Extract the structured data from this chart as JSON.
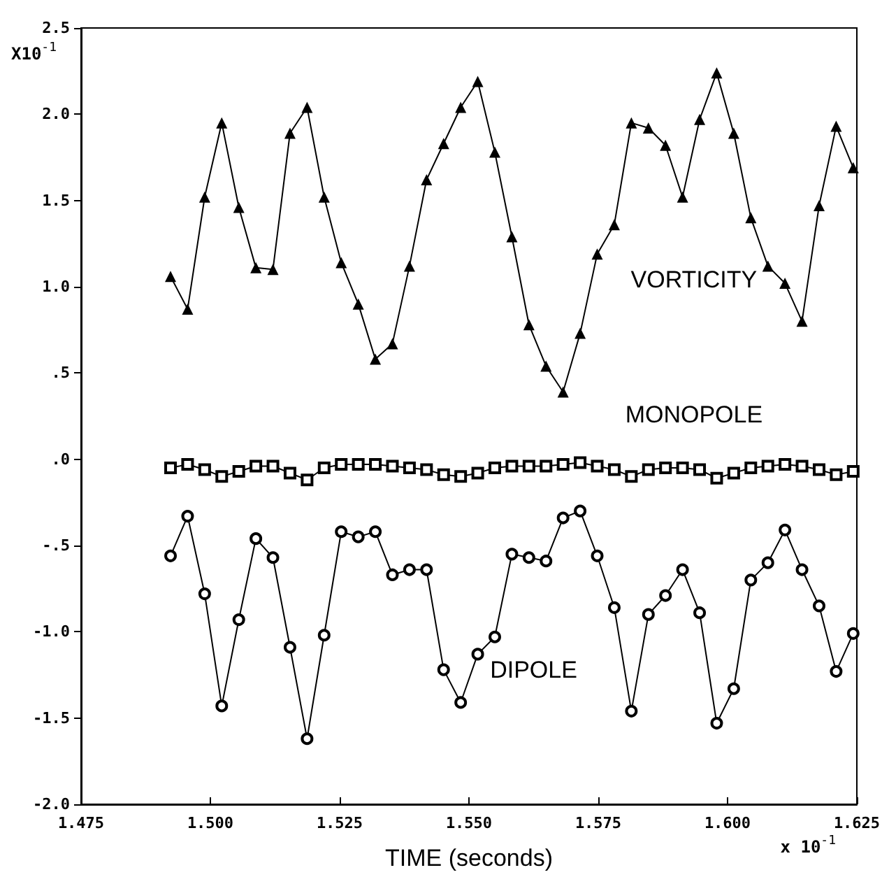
{
  "chart_data": {
    "type": "line",
    "xlabel": "TIME (seconds)",
    "annotations": [
      "X10$^{-1}$",
      "x 10$^{-1}$"
    ],
    "x": [
      1.4923,
      1.4956,
      1.4989,
      1.5022,
      1.5055,
      1.5088,
      1.5121,
      1.5154,
      1.5187,
      1.522,
      1.5253,
      1.5286,
      1.5319,
      1.5352,
      1.5385,
      1.5418,
      1.5451,
      1.5484,
      1.5517,
      1.555,
      1.5583,
      1.5616,
      1.5649,
      1.5682,
      1.5715,
      1.5748,
      1.5781,
      1.5814,
      1.5847,
      1.588,
      1.5913,
      1.5946,
      1.5979,
      1.6012,
      1.6045,
      1.6078,
      1.6111,
      1.6144,
      1.6177,
      1.621,
      1.6243
    ],
    "series": [
      {
        "name": "VORTICITY",
        "color": "#000000",
        "marker": "triangle",
        "values": [
          1.06,
          0.87,
          1.52,
          1.95,
          1.46,
          1.11,
          1.1,
          1.89,
          2.04,
          1.52,
          1.14,
          0.9,
          0.58,
          0.67,
          1.12,
          1.62,
          1.83,
          2.04,
          2.19,
          1.78,
          1.29,
          0.78,
          0.54,
          0.39,
          0.73,
          1.19,
          1.36,
          1.95,
          1.92,
          1.82,
          1.52,
          1.97,
          2.24,
          1.89,
          1.4,
          1.12,
          1.02,
          0.8,
          1.47,
          1.93,
          1.69
        ]
      },
      {
        "name": "MONOPOLE",
        "color": "#000000",
        "marker": "square",
        "values": [
          -0.05,
          -0.03,
          -0.06,
          -0.1,
          -0.07,
          -0.04,
          -0.04,
          -0.08,
          -0.12,
          -0.05,
          -0.03,
          -0.03,
          -0.03,
          -0.04,
          -0.05,
          -0.06,
          -0.09,
          -0.1,
          -0.08,
          -0.05,
          -0.04,
          -0.04,
          -0.04,
          -0.03,
          -0.02,
          -0.04,
          -0.06,
          -0.1,
          -0.06,
          -0.05,
          -0.05,
          -0.06,
          -0.11,
          -0.08,
          -0.05,
          -0.04,
          -0.03,
          -0.04,
          -0.06,
          -0.09,
          -0.07
        ]
      },
      {
        "name": "DIPOLE",
        "color": "#000000",
        "marker": "circle",
        "values": [
          -0.56,
          -0.33,
          -0.78,
          -1.43,
          -0.93,
          -0.46,
          -0.57,
          -1.09,
          -1.62,
          -1.02,
          -0.42,
          -0.45,
          -0.42,
          -0.67,
          -0.64,
          -0.64,
          -1.22,
          -1.41,
          -1.13,
          -1.03,
          -0.55,
          -0.57,
          -0.59,
          -0.34,
          -0.3,
          -0.56,
          -0.86,
          -1.46,
          -0.9,
          -0.79,
          -0.64,
          -0.89,
          -1.53,
          -1.33,
          -0.7,
          -0.6,
          -0.41,
          -0.64,
          -0.85,
          -1.23,
          -1.01
        ]
      }
    ],
    "xlim": [
      1.475,
      1.625
    ],
    "xticks": [
      1.475,
      {
        "value": 1.5,
        "label": "1.500"
      },
      1.525,
      {
        "value": 1.55,
        "label": "1.550"
      },
      1.575,
      {
        "value": 1.6,
        "label": "1.600"
      },
      1.625
    ],
    "ylim": [
      -2.0,
      2.5
    ],
    "yticks": [
      {
        "value": -2,
        "label": "-2.0"
      },
      {
        "value": -1.5,
        "label": "-1.5"
      },
      {
        "value": -1,
        "label": "-1.0"
      },
      {
        "value": -0.5,
        "label": "-.5"
      },
      {
        "value": 0,
        "label": ".0"
      },
      {
        "value": 0.5,
        "label": ".5"
      },
      {
        "value": 1,
        "label": "1.0"
      },
      {
        "value": 1.5,
        "label": "1.5"
      },
      {
        "value": 2,
        "label": "2.0"
      },
      {
        "value": 2.5,
        "label": "2.5"
      }
    ],
    "grid": false,
    "legend": false,
    "line_style": "solid"
  }
}
